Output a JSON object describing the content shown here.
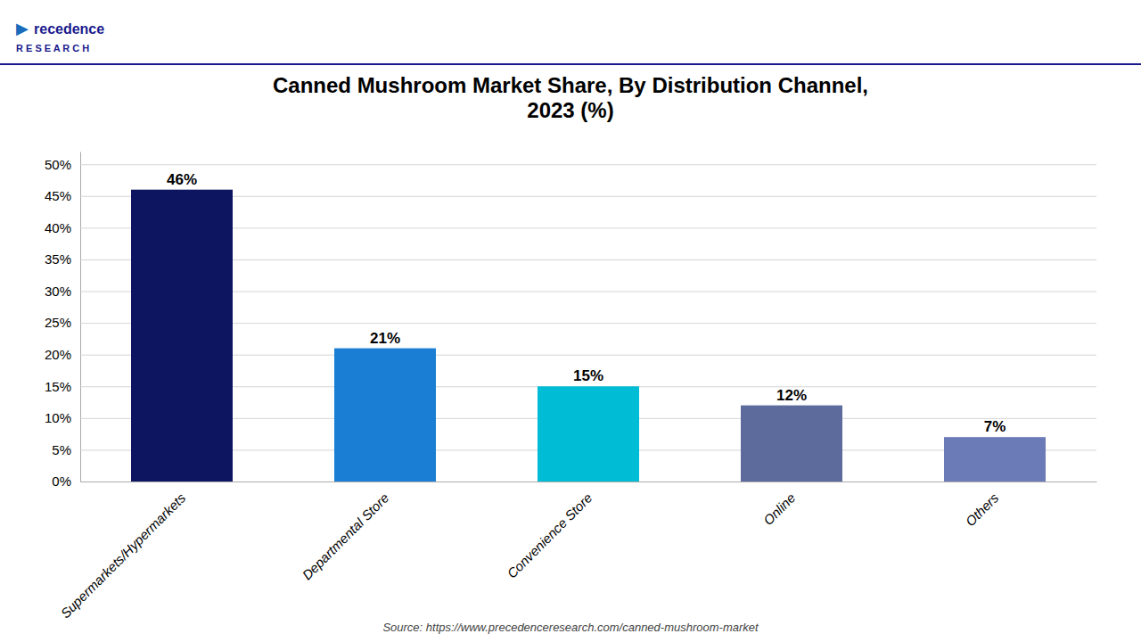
{
  "chart_data": {
    "type": "bar",
    "title": "Canned Mushroom Market Share, By Distribution Channel,\n2023 (%)",
    "categories": [
      "Supermarkets/Hypermarkets",
      "Departmental Store",
      "Convenience Store",
      "Online",
      "Others"
    ],
    "values": [
      46,
      21,
      15,
      12,
      7
    ],
    "value_labels": [
      "46%",
      "21%",
      "15%",
      "12%",
      "7%"
    ],
    "colors": [
      "#0d1560",
      "#1a7fd4",
      "#00bcd4",
      "#5c6b9c",
      "#6b7bb8"
    ],
    "ylim": [
      0,
      52
    ],
    "yticks": [
      {
        "value": 0,
        "label": "0%"
      },
      {
        "value": 5,
        "label": "5%"
      },
      {
        "value": 10,
        "label": "10%"
      },
      {
        "value": 15,
        "label": "15%"
      },
      {
        "value": 20,
        "label": "20%"
      },
      {
        "value": 25,
        "label": "25%"
      },
      {
        "value": 30,
        "label": "30%"
      },
      {
        "value": 35,
        "label": "35%"
      },
      {
        "value": 40,
        "label": "40%"
      },
      {
        "value": 45,
        "label": "45%"
      },
      {
        "value": 50,
        "label": "50%"
      }
    ],
    "grid": true,
    "data_labels": true,
    "annotations": [
      "Source: https://www.precedenceresearch.com/canned-mushroom-market",
      "▶",
      "recedence",
      "R E S E A R C H"
    ]
  }
}
